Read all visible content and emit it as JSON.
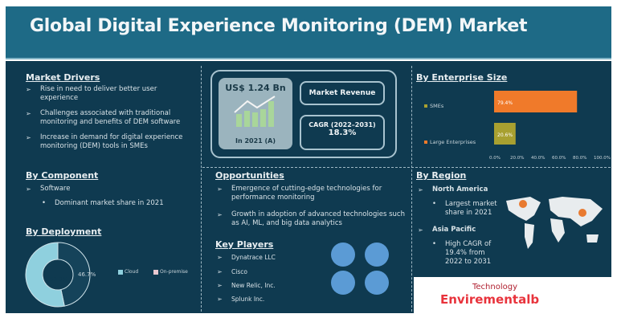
{
  "title": "Global Digital Experience Monitoring (DEM) Market",
  "market_drivers": {
    "heading": "Market Drivers",
    "items": [
      "Rise in need to deliver better user experience",
      "Challenges associated with traditional monitoring and benefits of DEM software",
      "Increase in demand for digital experience monitoring (DEM) tools in SMEs"
    ]
  },
  "by_component": {
    "heading": "By Component",
    "item": "Software",
    "sub": "Dominant market share in 2021"
  },
  "by_deployment": {
    "heading": "By Deployment",
    "legend": [
      "Cloud",
      "On-premise"
    ]
  },
  "revenue": {
    "value": "US$ 1.24 Bn",
    "year": "In 2021 (A)",
    "label": "Market Revenue",
    "cagr_label": "CAGR (2022–2031)",
    "cagr_value": "18.3%"
  },
  "opportunities": {
    "heading": "Opportunities",
    "items": [
      "Emergence of cutting-edge technologies for performance monitoring",
      "Growth in adoption of advanced technologies such as AI, ML, and big data analytics"
    ]
  },
  "key_players": {
    "heading": "Key Players",
    "items": [
      "Dynatrace LLC",
      "Cisco",
      "New Relic, Inc.",
      "Splunk Inc."
    ]
  },
  "by_enterprise": {
    "heading": "By Enterprise Size"
  },
  "by_region": {
    "heading": "By Region",
    "na": "North America",
    "na_sub": "Largest market share in 2021",
    "ap": "Asia Pacific",
    "ap_sub": "High CAGR of 19.4% from 2022 to 2031"
  },
  "logo": {
    "line1": "Technology",
    "line2": "Envirementalb"
  },
  "chart_data": [
    {
      "type": "bar",
      "orientation": "horizontal",
      "categories": [
        "SMEs",
        "Large Enterprises"
      ],
      "values": [
        79.4,
        20.6
      ],
      "labels": [
        "79.4%",
        "20.6%"
      ],
      "colors": [
        "#f07a2a",
        "#a8a030"
      ],
      "xlim": [
        0,
        100
      ],
      "ticks": [
        "0.0%",
        "20.0%",
        "40.0%",
        "60.0%",
        "80.0%",
        "100.0%"
      ]
    },
    {
      "type": "pie",
      "donut": true,
      "categories": [
        "Cloud",
        "On-premise"
      ],
      "values": [
        53.3,
        46.7
      ],
      "labels": [
        "53.3%",
        "46.7%"
      ],
      "colors": [
        "#8fd0de",
        "#15435a"
      ]
    }
  ]
}
